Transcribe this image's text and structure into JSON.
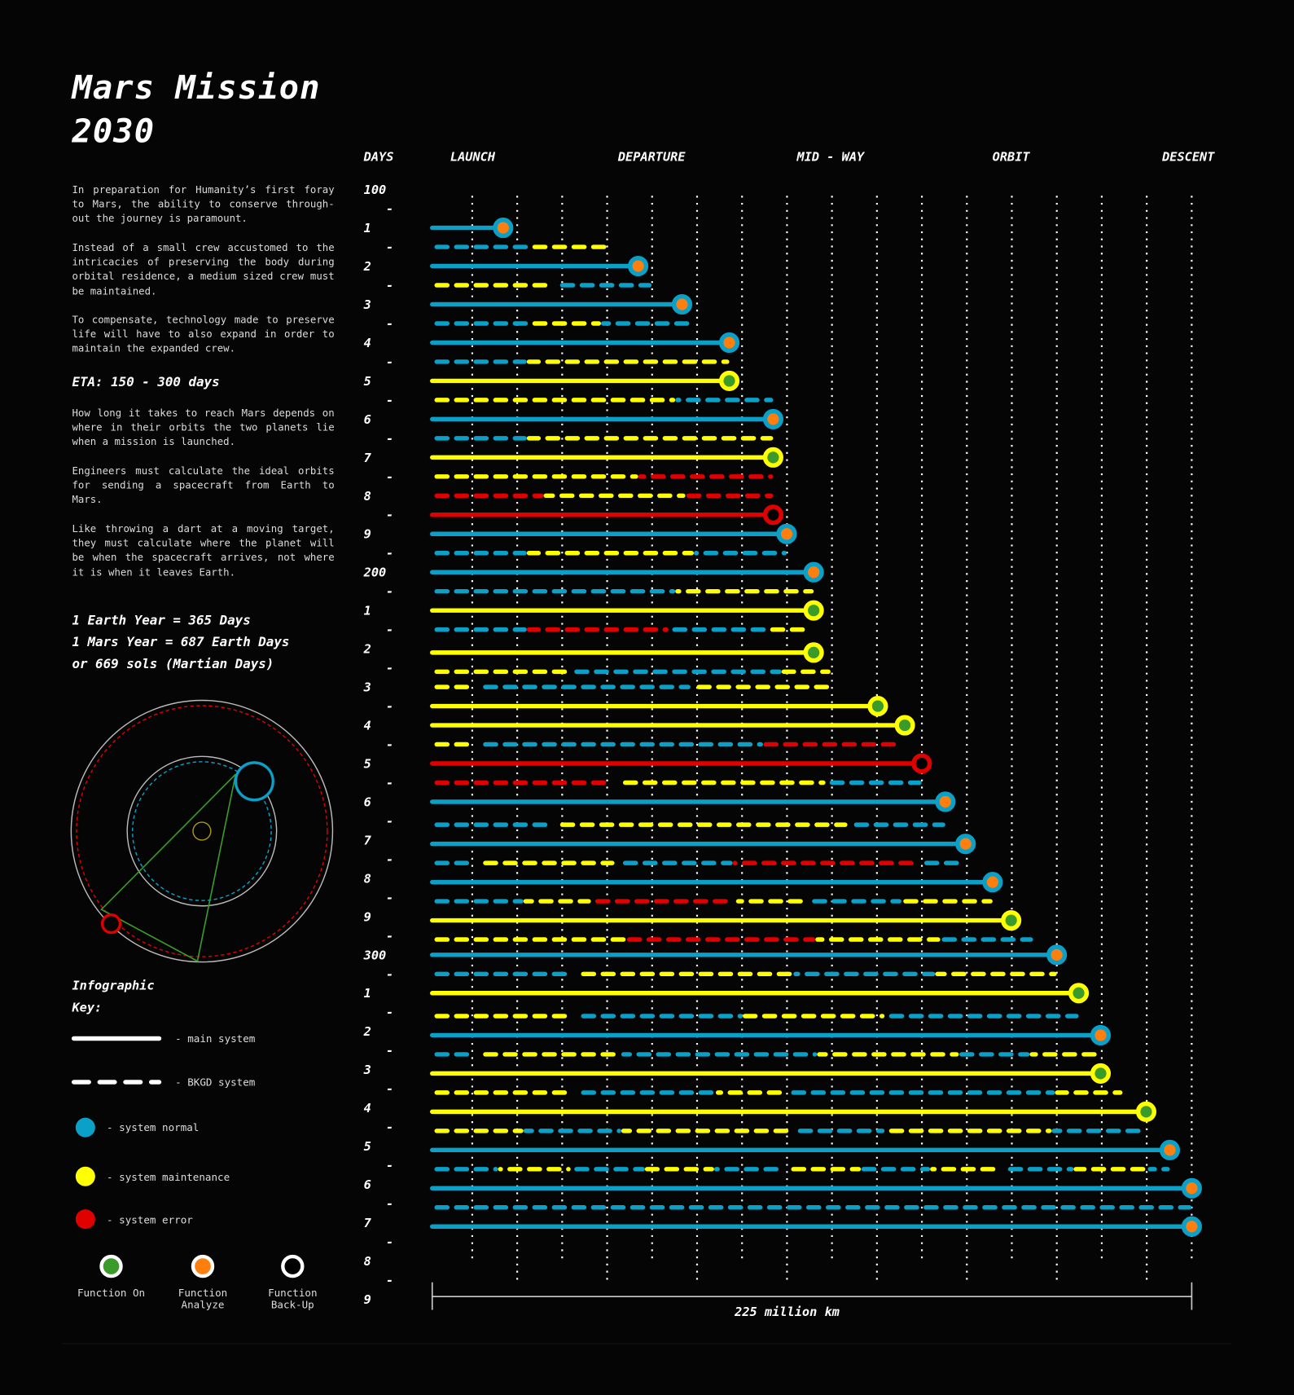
{
  "title_line1": "Mars Mission",
  "title_line2": "2030",
  "paragraphs": [
    "In preparation for Humanity’s first foray to Mars, the ability to conserve through-out the journey is paramount.",
    "Instead of a small crew accustomed to the intricacies of preserving the body during orbital residence, a medium sized crew must be maintained.",
    "To compensate, technology made to preserve life will have to also expand in order to maintain the expanded crew.",
    "How long it takes to reach Mars depends on where in their orbits the two planets lie when a mission is launched.",
    "Engineers must calculate the ideal orbits for sending a spacecraft from Earth to Mars.",
    "Like throwing a dart at a moving target, they must calculate where the planet will be when the spacecraft arrives, not where it is when it leaves Earth."
  ],
  "eta": "ETA: 150 - 300 days",
  "years": [
    "1 Earth Year = 365 Days",
    "1 Mars Year = 687 Earth Days",
    "or 669 sols (Martian Days)"
  ],
  "legend": {
    "title_line1": "Infographic",
    "title_line2": "Key:",
    "main_system": "- main system",
    "bkgd_system": "- BKGD system",
    "system_normal": "- system normal",
    "system_maintenance": "- system maintenance",
    "system_error": "- system error",
    "function_on": [
      "Function On"
    ],
    "function_analyze": [
      "Function",
      "Analyze"
    ],
    "function_backup": [
      "Function",
      "Back-Up"
    ]
  },
  "colors": {
    "n": "#0aa0c8",
    "m": "#ffff00",
    "e": "#e00000",
    "on": "#3a9a2a",
    "analyze": "#ff7f0e",
    "backup": "#000000",
    "grid": "#ffffff"
  },
  "chart_data": {
    "type": "timeline-bar",
    "y_axis_label": "DAYS",
    "ylim": [
      100,
      390
    ],
    "y_ticks": [
      {
        "day": 100,
        "label": "100"
      },
      {
        "day": 110,
        "label": "1"
      },
      {
        "day": 120,
        "label": "2"
      },
      {
        "day": 130,
        "label": "3"
      },
      {
        "day": 140,
        "label": "4"
      },
      {
        "day": 150,
        "label": "5"
      },
      {
        "day": 160,
        "label": "6"
      },
      {
        "day": 170,
        "label": "7"
      },
      {
        "day": 180,
        "label": "8"
      },
      {
        "day": 190,
        "label": "9"
      },
      {
        "day": 200,
        "label": "200"
      },
      {
        "day": 210,
        "label": "1"
      },
      {
        "day": 220,
        "label": "2"
      },
      {
        "day": 230,
        "label": "3"
      },
      {
        "day": 240,
        "label": "4"
      },
      {
        "day": 250,
        "label": "5"
      },
      {
        "day": 260,
        "label": "6"
      },
      {
        "day": 270,
        "label": "7"
      },
      {
        "day": 280,
        "label": "8"
      },
      {
        "day": 290,
        "label": "9"
      },
      {
        "day": 300,
        "label": "300"
      },
      {
        "day": 310,
        "label": "1"
      },
      {
        "day": 320,
        "label": "2"
      },
      {
        "day": 330,
        "label": "3"
      },
      {
        "day": 340,
        "label": "4"
      },
      {
        "day": 350,
        "label": "5"
      },
      {
        "day": 360,
        "label": "6"
      },
      {
        "day": 370,
        "label": "7"
      },
      {
        "day": 380,
        "label": "8"
      },
      {
        "day": 390,
        "label": "9"
      }
    ],
    "minor_tick_mark": "-",
    "x_unit_label": "225 million km",
    "xlim": [
      0,
      225
    ],
    "grid": true,
    "phases": [
      {
        "label": "LAUNCH",
        "km": 12
      },
      {
        "label": "DEPARTURE",
        "km": 65
      },
      {
        "label": "MID - WAY",
        "km": 118
      },
      {
        "label": "ORBIT",
        "km": 171.5
      },
      {
        "label": "DESCENT",
        "km": 224
      }
    ],
    "rows": [
      {
        "day": 110,
        "type": "main",
        "color": "n",
        "end": 21,
        "function": "analyze"
      },
      {
        "day": 115,
        "type": "bkgd",
        "segs": [
          [
            "n",
            0,
            29
          ],
          [
            "m",
            29,
            52
          ]
        ]
      },
      {
        "day": 120,
        "type": "main",
        "color": "n",
        "end": 61,
        "function": "analyze"
      },
      {
        "day": 125,
        "type": "bkgd",
        "segs": [
          [
            "m",
            0,
            36
          ],
          [
            "n",
            36,
            65
          ]
        ]
      },
      {
        "day": 130,
        "type": "main",
        "color": "n",
        "end": 74,
        "function": "analyze"
      },
      {
        "day": 135,
        "type": "bkgd",
        "segs": [
          [
            "n",
            0,
            29
          ],
          [
            "m",
            29,
            50
          ],
          [
            "n",
            50,
            78.5
          ]
        ]
      },
      {
        "day": 140,
        "type": "main",
        "color": "n",
        "end": 88,
        "function": "analyze"
      },
      {
        "day": 145,
        "type": "bkgd",
        "segs": [
          [
            "n",
            0,
            28
          ],
          [
            "m",
            28,
            88
          ]
        ]
      },
      {
        "day": 150,
        "type": "main",
        "color": "m",
        "end": 88,
        "function": "on"
      },
      {
        "day": 155,
        "type": "bkgd",
        "segs": [
          [
            "m",
            0,
            72
          ],
          [
            "n",
            72,
            101
          ]
        ]
      },
      {
        "day": 160,
        "type": "main",
        "color": "n",
        "end": 101,
        "function": "analyze"
      },
      {
        "day": 165,
        "type": "bkgd",
        "segs": [
          [
            "n",
            0,
            28
          ],
          [
            "m",
            28,
            101
          ]
        ]
      },
      {
        "day": 170,
        "type": "main",
        "color": "m",
        "end": 101,
        "function": "on"
      },
      {
        "day": 175,
        "type": "bkgd",
        "segs": [
          [
            "m",
            0,
            61
          ],
          [
            "e",
            61,
            101
          ]
        ]
      },
      {
        "day": 180,
        "type": "bkgd",
        "segs": [
          [
            "e",
            0,
            33
          ],
          [
            "m",
            33,
            75
          ],
          [
            "e",
            75,
            101
          ]
        ]
      },
      {
        "day": 185,
        "type": "main",
        "color": "e",
        "end": 101,
        "function": "backup"
      },
      {
        "day": 190,
        "type": "main",
        "color": "n",
        "end": 105,
        "function": "analyze"
      },
      {
        "day": 195,
        "type": "bkgd",
        "segs": [
          [
            "n",
            0,
            28
          ],
          [
            "m",
            28,
            77.5
          ],
          [
            "n",
            77.5,
            105
          ]
        ]
      },
      {
        "day": 200,
        "type": "main",
        "color": "n",
        "end": 113,
        "function": "analyze"
      },
      {
        "day": 205,
        "type": "bkgd",
        "segs": [
          [
            "n",
            0,
            72
          ],
          [
            "m",
            72,
            113
          ]
        ]
      },
      {
        "day": 210,
        "type": "main",
        "color": "m",
        "end": 113,
        "function": "on"
      },
      {
        "day": 215,
        "type": "bkgd",
        "segs": [
          [
            "n",
            0,
            28
          ],
          [
            "e",
            28,
            70
          ],
          [
            "n",
            70,
            99
          ],
          [
            "m",
            99,
            113
          ]
        ]
      },
      {
        "day": 221,
        "type": "main",
        "color": "m",
        "end": 113,
        "function": "on"
      },
      {
        "day": 226,
        "type": "bkgd",
        "segs": [
          [
            "m",
            0,
            41
          ],
          [
            "n",
            41,
            103.5
          ],
          [
            "m",
            103.5,
            118
          ]
        ]
      },
      {
        "day": 230,
        "type": "bkgd",
        "segs": [
          [
            "m",
            0,
            13
          ],
          [
            "n",
            13,
            76.5
          ],
          [
            "m",
            76.5,
            118
          ]
        ]
      },
      {
        "day": 235,
        "type": "main",
        "color": "m",
        "end": 132,
        "function": "on"
      },
      {
        "day": 240,
        "type": "main",
        "color": "m",
        "end": 140,
        "function": "on"
      },
      {
        "day": 245,
        "type": "bkgd",
        "segs": [
          [
            "m",
            0,
            13
          ],
          [
            "n",
            13,
            98
          ],
          [
            "e",
            98,
            140
          ]
        ]
      },
      {
        "day": 250,
        "type": "main",
        "color": "e",
        "end": 145,
        "function": "backup"
      },
      {
        "day": 255,
        "type": "bkgd",
        "segs": [
          [
            "e",
            0,
            54
          ],
          [
            "m",
            54,
            116.5
          ],
          [
            "n",
            116.5,
            145
          ]
        ]
      },
      {
        "day": 260,
        "type": "main",
        "color": "n",
        "end": 152,
        "function": "analyze"
      },
      {
        "day": 266,
        "type": "bkgd",
        "segs": [
          [
            "n",
            0,
            36
          ],
          [
            "m",
            36,
            123
          ],
          [
            "n",
            123,
            152
          ]
        ]
      },
      {
        "day": 271,
        "type": "main",
        "color": "n",
        "end": 158,
        "function": "analyze"
      },
      {
        "day": 276,
        "type": "bkgd",
        "segs": [
          [
            "n",
            0,
            13
          ],
          [
            "m",
            13,
            54
          ],
          [
            "n",
            54,
            89
          ],
          [
            "e",
            89,
            145
          ],
          [
            "n",
            145,
            158
          ]
        ]
      },
      {
        "day": 281,
        "type": "main",
        "color": "n",
        "end": 166,
        "function": "analyze"
      },
      {
        "day": 286,
        "type": "bkgd",
        "segs": [
          [
            "n",
            0,
            27
          ],
          [
            "m",
            27,
            47
          ],
          [
            "e",
            47,
            90
          ],
          [
            "m",
            90,
            111
          ],
          [
            "n",
            111,
            139
          ],
          [
            "m",
            139,
            166
          ]
        ]
      },
      {
        "day": 291,
        "type": "main",
        "color": "m",
        "end": 171.5,
        "function": "on"
      },
      {
        "day": 296,
        "type": "bkgd",
        "segs": [
          [
            "m",
            0,
            57.5
          ],
          [
            "e",
            57.5,
            113.5
          ],
          [
            "m",
            113.5,
            150.5
          ],
          [
            "n",
            150.5,
            178
          ]
        ]
      },
      {
        "day": 300,
        "type": "main",
        "color": "n",
        "end": 185,
        "function": "analyze"
      },
      {
        "day": 305,
        "type": "bkgd",
        "segs": [
          [
            "n",
            0,
            42
          ],
          [
            "m",
            42,
            107
          ],
          [
            "n",
            107,
            149
          ],
          [
            "m",
            149,
            185
          ]
        ]
      },
      {
        "day": 310,
        "type": "main",
        "color": "m",
        "end": 191.5,
        "function": "on"
      },
      {
        "day": 316,
        "type": "bkgd",
        "segs": [
          [
            "m",
            0,
            42
          ],
          [
            "n",
            42,
            92
          ],
          [
            "m",
            92,
            134
          ],
          [
            "n",
            134,
            191.5
          ]
        ]
      },
      {
        "day": 321,
        "type": "main",
        "color": "n",
        "end": 198,
        "function": "analyze"
      },
      {
        "day": 326,
        "type": "bkgd",
        "segs": [
          [
            "n",
            0,
            13
          ],
          [
            "m",
            13,
            56
          ],
          [
            "n",
            56,
            114
          ],
          [
            "m",
            114,
            156
          ],
          [
            "n",
            156,
            177
          ],
          [
            "m",
            177,
            198
          ]
        ]
      },
      {
        "day": 331,
        "type": "main",
        "color": "m",
        "end": 198,
        "function": "on"
      },
      {
        "day": 336,
        "type": "bkgd",
        "segs": [
          [
            "m",
            0,
            42
          ],
          [
            "n",
            42,
            84
          ],
          [
            "m",
            84,
            105
          ],
          [
            "n",
            105,
            184.5
          ],
          [
            "m",
            184.5,
            204.5
          ]
        ]
      },
      {
        "day": 341,
        "type": "main",
        "color": "m",
        "end": 211.5,
        "function": "on"
      },
      {
        "day": 346,
        "type": "bkgd",
        "segs": [
          [
            "m",
            0,
            27
          ],
          [
            "n",
            27,
            56
          ],
          [
            "m",
            56,
            106
          ],
          [
            "n",
            106,
            134
          ],
          [
            "m",
            134,
            183.5
          ],
          [
            "n",
            183.5,
            211.5
          ]
        ]
      },
      {
        "day": 351,
        "type": "main",
        "color": "n",
        "end": 218.5,
        "function": "analyze"
      },
      {
        "day": 356,
        "type": "bkgd",
        "segs": [
          [
            "n",
            0,
            19.5
          ],
          [
            "m",
            19.5,
            41
          ],
          [
            "n",
            41,
            63
          ],
          [
            "m",
            63,
            83.5
          ],
          [
            "n",
            83.5,
            105
          ],
          [
            "m",
            105,
            127
          ],
          [
            "n",
            127,
            147.5
          ],
          [
            "m",
            147.5,
            169
          ],
          [
            "n",
            169,
            190
          ],
          [
            "m",
            190,
            212
          ],
          [
            "n",
            212,
            218.5
          ]
        ]
      },
      {
        "day": 361,
        "type": "main",
        "color": "n",
        "end": 225,
        "function": "analyze"
      },
      {
        "day": 366,
        "type": "bkgd",
        "segs": [
          [
            "n",
            0,
            225
          ]
        ]
      },
      {
        "day": 371,
        "type": "main",
        "color": "n",
        "end": 225,
        "function": "analyze"
      }
    ]
  }
}
